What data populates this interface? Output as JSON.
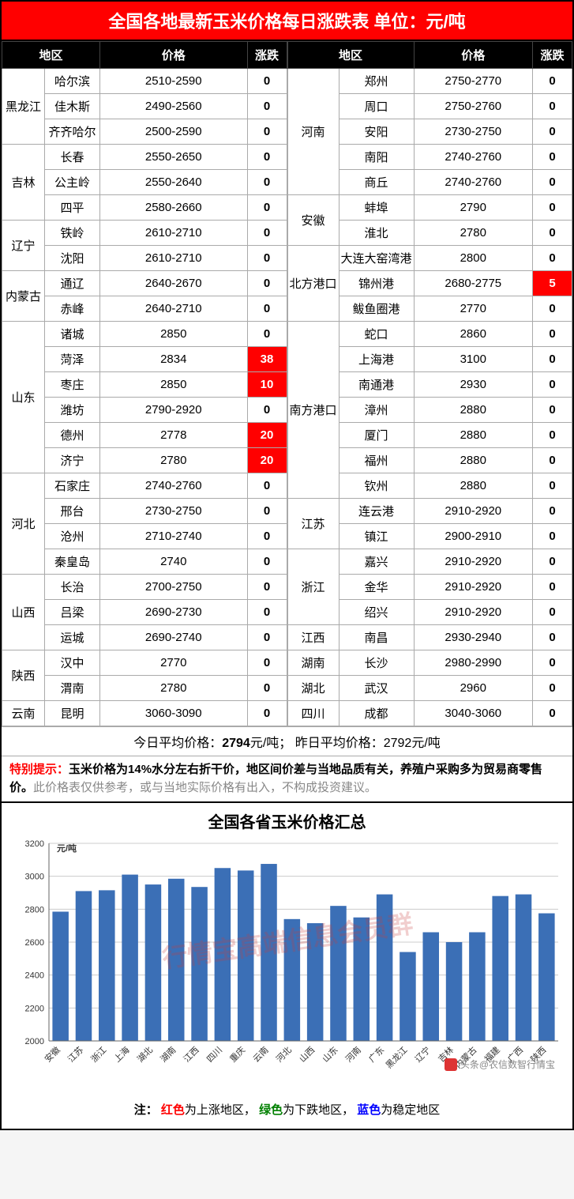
{
  "title": "全国各地最新玉米价格每日涨跌表   单位：元/吨",
  "headers": [
    "地区",
    "价格",
    "涨跌"
  ],
  "left_rows": [
    {
      "prov": "黑龙江",
      "prov_rowspan": 3,
      "city": "哈尔滨",
      "price": "2510-2590",
      "chg": "0",
      "dir": "flat"
    },
    {
      "city": "佳木斯",
      "price": "2490-2560",
      "chg": "0",
      "dir": "flat"
    },
    {
      "city": "齐齐哈尔",
      "price": "2500-2590",
      "chg": "0",
      "dir": "flat"
    },
    {
      "prov": "吉林",
      "prov_rowspan": 3,
      "city": "长春",
      "price": "2550-2650",
      "chg": "0",
      "dir": "flat"
    },
    {
      "city": "公主岭",
      "price": "2550-2640",
      "chg": "0",
      "dir": "flat"
    },
    {
      "city": "四平",
      "price": "2580-2660",
      "chg": "0",
      "dir": "flat"
    },
    {
      "prov": "辽宁",
      "prov_rowspan": 2,
      "city": "铁岭",
      "price": "2610-2710",
      "chg": "0",
      "dir": "flat"
    },
    {
      "city": "沈阳",
      "price": "2610-2710",
      "chg": "0",
      "dir": "flat"
    },
    {
      "prov": "内蒙古",
      "prov_rowspan": 2,
      "city": "通辽",
      "price": "2640-2670",
      "chg": "0",
      "dir": "flat"
    },
    {
      "city": "赤峰",
      "price": "2640-2710",
      "chg": "0",
      "dir": "flat"
    },
    {
      "prov": "山东",
      "prov_rowspan": 6,
      "city": "诸城",
      "price": "2850",
      "chg": "0",
      "dir": "flat"
    },
    {
      "city": "菏泽",
      "price": "2834",
      "chg": "38",
      "dir": "up"
    },
    {
      "city": "枣庄",
      "price": "2850",
      "chg": "10",
      "dir": "up"
    },
    {
      "city": "潍坊",
      "price": "2790-2920",
      "chg": "0",
      "dir": "flat"
    },
    {
      "city": "德州",
      "price": "2778",
      "chg": "20",
      "dir": "up"
    },
    {
      "city": "济宁",
      "price": "2780",
      "chg": "20",
      "dir": "up"
    },
    {
      "prov": "河北",
      "prov_rowspan": 4,
      "city": "石家庄",
      "price": "2740-2760",
      "chg": "0",
      "dir": "flat"
    },
    {
      "city": "邢台",
      "price": "2730-2750",
      "chg": "0",
      "dir": "flat"
    },
    {
      "city": "沧州",
      "price": "2710-2740",
      "chg": "0",
      "dir": "flat"
    },
    {
      "city": "秦皇岛",
      "price": "2740",
      "chg": "0",
      "dir": "flat"
    },
    {
      "prov": "山西",
      "prov_rowspan": 3,
      "city": "长治",
      "price": "2700-2750",
      "chg": "0",
      "dir": "flat"
    },
    {
      "city": "吕梁",
      "price": "2690-2730",
      "chg": "0",
      "dir": "flat"
    },
    {
      "city": "运城",
      "price": "2690-2740",
      "chg": "0",
      "dir": "flat"
    },
    {
      "prov": "陕西",
      "prov_rowspan": 2,
      "city": "汉中",
      "price": "2770",
      "chg": "0",
      "dir": "flat"
    },
    {
      "city": "渭南",
      "price": "2780",
      "chg": "0",
      "dir": "flat"
    },
    {
      "prov": "云南",
      "prov_rowspan": 1,
      "city": "昆明",
      "price": "3060-3090",
      "chg": "0",
      "dir": "flat"
    }
  ],
  "right_rows": [
    {
      "prov": "河南",
      "prov_rowspan": 5,
      "city": "郑州",
      "price": "2750-2770",
      "chg": "0",
      "dir": "flat"
    },
    {
      "city": "周口",
      "price": "2750-2760",
      "chg": "0",
      "dir": "flat"
    },
    {
      "city": "安阳",
      "price": "2730-2750",
      "chg": "0",
      "dir": "flat"
    },
    {
      "city": "南阳",
      "price": "2740-2760",
      "chg": "0",
      "dir": "flat"
    },
    {
      "city": "商丘",
      "price": "2740-2760",
      "chg": "0",
      "dir": "flat"
    },
    {
      "prov": "安徽",
      "prov_rowspan": 2,
      "city": "蚌埠",
      "price": "2790",
      "chg": "0",
      "dir": "flat"
    },
    {
      "city": "淮北",
      "price": "2780",
      "chg": "0",
      "dir": "flat"
    },
    {
      "prov": "北方港口",
      "prov_rowspan": 3,
      "city": "大连大窑湾港",
      "price": "2800",
      "chg": "0",
      "dir": "flat"
    },
    {
      "city": "锦州港",
      "price": "2680-2775",
      "chg": "5",
      "dir": "up"
    },
    {
      "city": "鲅鱼圈港",
      "price": "2770",
      "chg": "0",
      "dir": "flat"
    },
    {
      "prov": "南方港口",
      "prov_rowspan": 7,
      "city": "蛇口",
      "price": "2860",
      "chg": "0",
      "dir": "flat"
    },
    {
      "city": "上海港",
      "price": "3100",
      "chg": "0",
      "dir": "flat"
    },
    {
      "city": "南通港",
      "price": "2930",
      "chg": "0",
      "dir": "flat"
    },
    {
      "city": "漳州",
      "price": "2880",
      "chg": "0",
      "dir": "flat"
    },
    {
      "city": "厦门",
      "price": "2880",
      "chg": "0",
      "dir": "flat"
    },
    {
      "city": "福州",
      "price": "2880",
      "chg": "0",
      "dir": "flat"
    },
    {
      "city": "钦州",
      "price": "2880",
      "chg": "0",
      "dir": "flat"
    },
    {
      "prov": "江苏",
      "prov_rowspan": 2,
      "city": "连云港",
      "price": "2910-2920",
      "chg": "0",
      "dir": "flat"
    },
    {
      "city": "镇江",
      "price": "2900-2910",
      "chg": "0",
      "dir": "flat"
    },
    {
      "prov": "浙江",
      "prov_rowspan": 3,
      "city": "嘉兴",
      "price": "2910-2920",
      "chg": "0",
      "dir": "flat"
    },
    {
      "city": "金华",
      "price": "2910-2920",
      "chg": "0",
      "dir": "flat"
    },
    {
      "city": "绍兴",
      "price": "2910-2920",
      "chg": "0",
      "dir": "flat"
    },
    {
      "prov": "江西",
      "prov_rowspan": 1,
      "city": "南昌",
      "price": "2930-2940",
      "chg": "0",
      "dir": "flat"
    },
    {
      "prov": "湖南",
      "prov_rowspan": 1,
      "city": "长沙",
      "price": "2980-2990",
      "chg": "0",
      "dir": "flat"
    },
    {
      "prov": "湖北",
      "prov_rowspan": 1,
      "city": "武汉",
      "price": "2960",
      "chg": "0",
      "dir": "flat"
    },
    {
      "prov": "四川",
      "prov_rowspan": 1,
      "city": "成都",
      "price": "3040-3060",
      "chg": "0",
      "dir": "flat"
    }
  ],
  "col_widths": {
    "prov": 54,
    "city": 70,
    "price": 120,
    "chg": 50
  },
  "avg_line": {
    "today_label": "今日平均价格：",
    "today_value": "2794",
    "unit": "元/吨；",
    "yesterday_label": "昨日平均价格：",
    "yesterday_value": "2792",
    "yesterday_unit": "元/吨"
  },
  "notice": {
    "label": "特别提示：",
    "bold": "玉米价格为14%水分左右折干价，地区间价差与当地品质有关，养殖户采购多为贸易商零售价。",
    "gray": "此价格表仅供参考，或与当地实际价格有出入，不构成投资建议。"
  },
  "chart": {
    "title": "全国各省玉米价格汇总",
    "unit_label": "元/吨",
    "ylim": [
      2000,
      3200
    ],
    "ytick_step": 200,
    "bar_color": "#3b6fb6",
    "grid_color": "#cccccc",
    "axis_color": "#666666",
    "background": "#ffffff",
    "title_fontsize": 20,
    "label_fontsize": 11,
    "categories": [
      "安徽",
      "江苏",
      "浙江",
      "上海",
      "湖北",
      "湖南",
      "江西",
      "四川",
      "重庆",
      "云南",
      "河北",
      "山西",
      "山东",
      "河南",
      "广东",
      "黑龙江",
      "辽宁",
      "吉林",
      "内蒙古",
      "福建",
      "广西",
      "陕西"
    ],
    "values": [
      2785,
      2910,
      2915,
      3010,
      2950,
      2985,
      2935,
      3050,
      3035,
      3075,
      2740,
      2715,
      2820,
      2750,
      2890,
      2540,
      2660,
      2600,
      2660,
      2880,
      2890,
      2775
    ],
    "watermark": "行情宝高端信息会员群",
    "source": "头条@农信数智行情宝"
  },
  "legend_note": {
    "prefix": "注：",
    "red": "红色",
    "red_txt": "为上涨地区，",
    "green": "绿色",
    "green_txt": "为下跌地区，",
    "blue": "蓝色",
    "blue_txt": "为稳定地区"
  },
  "colors": {
    "title_bg": "#ff0000",
    "header_bg": "#000000",
    "up_bg": "#ff0000"
  }
}
